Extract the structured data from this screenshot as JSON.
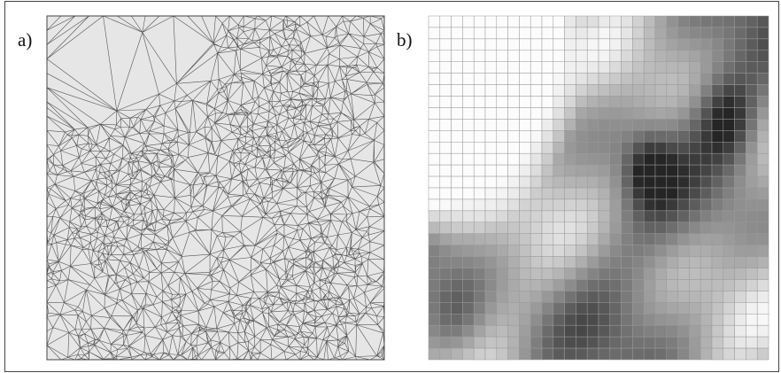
{
  "panel_a": {
    "label": "a)"
  },
  "panel_b": {
    "label": "b)"
  }
}
